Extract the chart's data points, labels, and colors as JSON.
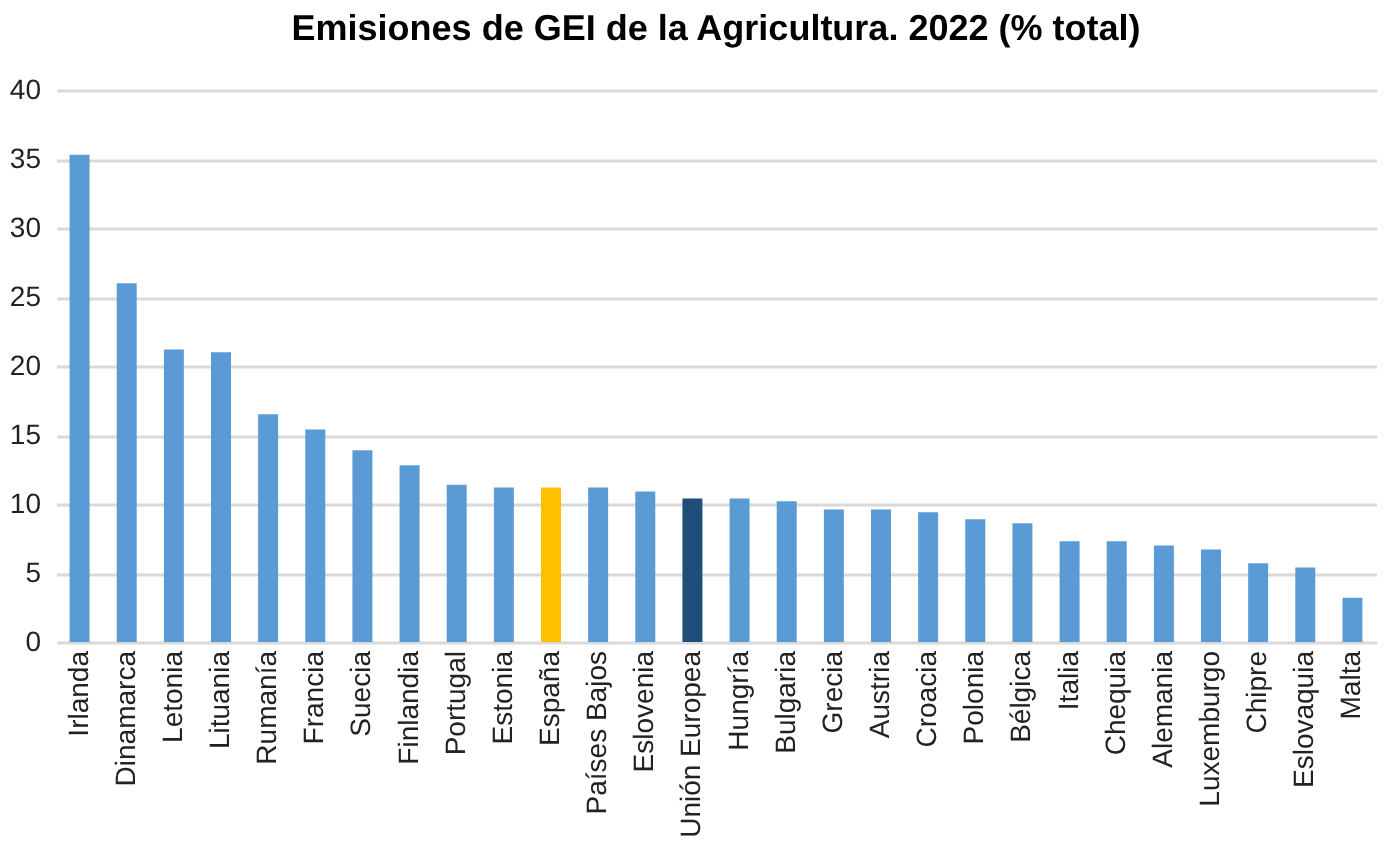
{
  "chart_data": {
    "type": "bar",
    "title": "Emisiones de GEI de la Agricultura. 2022 (% total)",
    "categories": [
      "Irlanda",
      "Dinamarca",
      "Letonia",
      "Lituania",
      "Rumanía",
      "Francia",
      "Suecia",
      "Finlandia",
      "Portugal",
      "Estonia",
      "España",
      "Países Bajos",
      "Eslovenia",
      "Unión Europea",
      "Hungría",
      "Bulgaria",
      "Grecia",
      "Austria",
      "Croacia",
      "Polonia",
      "Bélgica",
      "Italia",
      "Chequia",
      "Alemania",
      "Luxemburgo",
      "Chipre",
      "Eslovaquia",
      "Malta"
    ],
    "values": [
      35.3,
      26.0,
      21.2,
      21.0,
      16.5,
      15.4,
      13.9,
      12.8,
      11.4,
      11.2,
      11.2,
      11.2,
      10.9,
      10.4,
      10.4,
      10.2,
      9.6,
      9.6,
      9.4,
      8.9,
      8.6,
      7.3,
      7.3,
      7.0,
      6.7,
      5.7,
      5.4,
      3.2
    ],
    "colors": [
      "#5b9bd5",
      "#5b9bd5",
      "#5b9bd5",
      "#5b9bd5",
      "#5b9bd5",
      "#5b9bd5",
      "#5b9bd5",
      "#5b9bd5",
      "#5b9bd5",
      "#5b9bd5",
      "#ffc000",
      "#5b9bd5",
      "#5b9bd5",
      "#1f4e79",
      "#5b9bd5",
      "#5b9bd5",
      "#5b9bd5",
      "#5b9bd5",
      "#5b9bd5",
      "#5b9bd5",
      "#5b9bd5",
      "#5b9bd5",
      "#5b9bd5",
      "#5b9bd5",
      "#5b9bd5",
      "#5b9bd5",
      "#5b9bd5",
      "#5b9bd5"
    ],
    "ylim": [
      0,
      40
    ],
    "yticks": [
      0,
      5,
      10,
      15,
      20,
      25,
      30,
      35,
      40
    ],
    "grid": "y"
  }
}
